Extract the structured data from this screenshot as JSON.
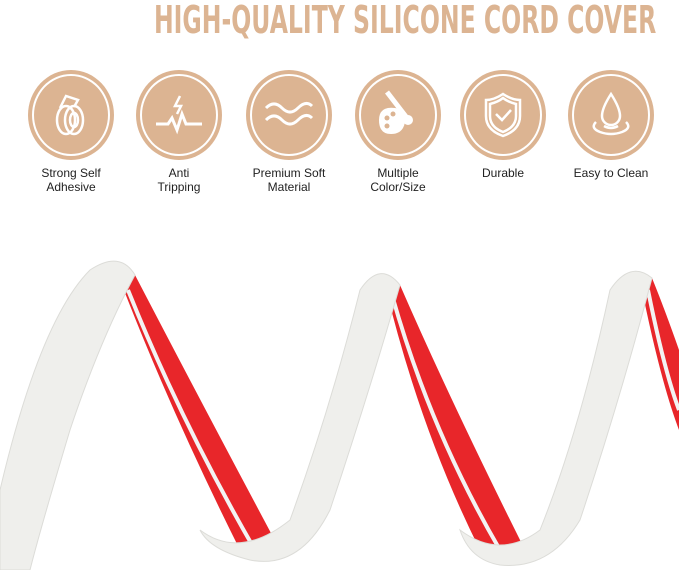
{
  "title": "HIGH-QUALITY SILICONE CORD COVER",
  "accent_color": "#dcb492",
  "features": [
    {
      "icon": "tape-roll-icon",
      "line1": "Strong Self",
      "line2": "Adhesive"
    },
    {
      "icon": "lightning-pulse-icon",
      "line1": "Anti",
      "line2": "Tripping"
    },
    {
      "icon": "waves-icon",
      "line1": "Premium Soft",
      "line2": "Material"
    },
    {
      "icon": "palette-brush-icon",
      "line1": "Multiple",
      "line2": "Color/Size"
    },
    {
      "icon": "shield-check-icon",
      "line1": "Durable",
      "line2": ""
    },
    {
      "icon": "water-drop-icon",
      "line1": "Easy to Clean",
      "line2": ""
    }
  ]
}
